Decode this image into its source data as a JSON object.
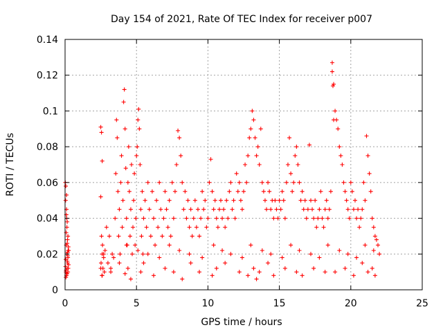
{
  "chart_data": {
    "type": "scatter",
    "title": "Day 154 of 2021, Rate Of TEC Index for receiver p007",
    "xlabel": "GPS time / hours",
    "ylabel": "ROTI / TECUs",
    "xlim": [
      0,
      25
    ],
    "ylim": [
      0,
      0.14
    ],
    "x_ticks": [
      "0",
      "5",
      "10",
      "15",
      "20",
      "25"
    ],
    "y_ticks": [
      "0",
      "0.02",
      "0.04",
      "0.06",
      "0.08",
      "0.1",
      "0.12",
      "0.14"
    ],
    "grid": true,
    "marker": "+",
    "series_color": "#ff0000",
    "series": [
      {
        "x": [
          0.05,
          0.1,
          0.15,
          0.2,
          0.08,
          0.12,
          0.18,
          0.22,
          0.06,
          0.1,
          0.14,
          0.2,
          0.25,
          0.02,
          0.04,
          0.09,
          0.13,
          0.17,
          0.21,
          0.24,
          0.07,
          0.11,
          0.16,
          0.19,
          0.23,
          0.03,
          0.05,
          0.08,
          0.12,
          0.15,
          0.18,
          0.2,
          0.1,
          0.06,
          0.14,
          2.5,
          2.55,
          2.6,
          2.5,
          2.55,
          2.6,
          2.65,
          2.58,
          2.52,
          2.62,
          2.7,
          2.75,
          2.8,
          2.9,
          3.0,
          3.1,
          3.2,
          3.3,
          3.5,
          3.55,
          3.6,
          3.65,
          3.7,
          3.75,
          3.8,
          3.85,
          3.9,
          3.95,
          4.0,
          4.05,
          4.1,
          4.15,
          4.2,
          4.25,
          4.3,
          4.35,
          4.4,
          4.45,
          4.5,
          4.55,
          4.6,
          4.65,
          4.7,
          4.75,
          4.8,
          4.85,
          4.9,
          4.95,
          5.0,
          5.05,
          5.1,
          5.15,
          5.2,
          5.25,
          5.3,
          5.35,
          5.4,
          5.45,
          5.5,
          5.6,
          5.7,
          5.8,
          5.9,
          6.0,
          6.1,
          6.2,
          6.3,
          6.4,
          6.5,
          6.6,
          6.7,
          6.8,
          6.9,
          7.0,
          7.1,
          7.2,
          7.3,
          7.4,
          7.5,
          7.6,
          7.7,
          7.8,
          7.9,
          8.0,
          8.1,
          8.2,
          8.3,
          8.4,
          8.5,
          8.6,
          8.7,
          8.8,
          8.9,
          9.0,
          9.1,
          9.2,
          9.3,
          9.4,
          9.5,
          9.6,
          9.7,
          9.8,
          9.9,
          10.0,
          10.1,
          10.2,
          10.3,
          10.4,
          10.5,
          10.6,
          10.7,
          10.8,
          10.9,
          11.0,
          11.1,
          11.2,
          11.3,
          11.4,
          11.5,
          11.6,
          11.7,
          11.8,
          11.9,
          12.0,
          12.1,
          12.2,
          12.3,
          12.4,
          12.5,
          12.6,
          12.7,
          12.8,
          12.9,
          13.0,
          13.1,
          13.2,
          13.3,
          13.4,
          13.5,
          13.6,
          13.7,
          13.8,
          13.9,
          14.0,
          14.1,
          14.2,
          14.3,
          14.4,
          14.5,
          14.6,
          14.7,
          14.8,
          14.9,
          15.0,
          15.1,
          15.2,
          15.3,
          15.4,
          15.5,
          15.6,
          15.7,
          15.8,
          15.9,
          16.0,
          16.1,
          16.2,
          16.3,
          16.4,
          16.5,
          16.6,
          16.7,
          16.8,
          16.9,
          17.0,
          17.1,
          17.2,
          17.3,
          17.4,
          17.5,
          17.6,
          17.7,
          17.8,
          17.9,
          18.0,
          18.1,
          18.2,
          18.3,
          18.4,
          18.5,
          18.6,
          18.7,
          18.8,
          18.9,
          19.0,
          19.1,
          19.2,
          19.3,
          19.4,
          19.5,
          19.6,
          19.7,
          19.8,
          19.9,
          20.0,
          20.1,
          20.2,
          20.3,
          20.4,
          20.5,
          20.6,
          20.7,
          20.8,
          20.9,
          21.0,
          21.1,
          21.2,
          21.3,
          21.4,
          21.5,
          21.6,
          21.7,
          21.8,
          21.9,
          22.0,
          2.5,
          2.6,
          3.2,
          3.8,
          4.2,
          4.4,
          4.6,
          5.3,
          5.5,
          6.2,
          7.0,
          7.6,
          8.2,
          8.8,
          9.4,
          10.3,
          10.6,
          11.2,
          12.2,
          12.8,
          13.2,
          13.4,
          13.6,
          14.2,
          14.6,
          15.4,
          16.2,
          16.6,
          17.4,
          18.2,
          18.7,
          18.75,
          18.8,
          18.9,
          19.6,
          20.2,
          20.8,
          21.2,
          21.5,
          21.7,
          2.7,
          3.4,
          4.3,
          5.1,
          5.8,
          6.6,
          7.3,
          8.0,
          8.7,
          9.6,
          10.4,
          11.0,
          11.6,
          12.4,
          13.0,
          13.8,
          14.4,
          15.2,
          15.8,
          16.4,
          17.2,
          17.8,
          18.4,
          19.2,
          19.8,
          20.4,
          21.0,
          21.6
        ],
        "y": [
          0.058,
          0.045,
          0.038,
          0.03,
          0.025,
          0.02,
          0.015,
          0.012,
          0.01,
          0.008,
          0.012,
          0.018,
          0.022,
          0.06,
          0.05,
          0.042,
          0.035,
          0.028,
          0.022,
          0.014,
          0.011,
          0.009,
          0.016,
          0.019,
          0.024,
          0.013,
          0.017,
          0.032,
          0.04,
          0.026,
          0.021,
          0.01,
          0.053,
          0.007,
          0.009,
          0.091,
          0.088,
          0.072,
          0.052,
          0.03,
          0.02,
          0.012,
          0.008,
          0.015,
          0.025,
          0.018,
          0.01,
          0.022,
          0.035,
          0.015,
          0.03,
          0.012,
          0.02,
          0.04,
          0.065,
          0.095,
          0.085,
          0.055,
          0.03,
          0.045,
          0.02,
          0.06,
          0.075,
          0.035,
          0.05,
          0.105,
          0.112,
          0.09,
          0.068,
          0.04,
          0.025,
          0.06,
          0.08,
          0.055,
          0.03,
          0.045,
          0.07,
          0.02,
          0.035,
          0.05,
          0.065,
          0.025,
          0.04,
          0.075,
          0.08,
          0.095,
          0.101,
          0.09,
          0.07,
          0.045,
          0.03,
          0.055,
          0.02,
          0.04,
          0.05,
          0.035,
          0.06,
          0.045,
          0.03,
          0.055,
          0.04,
          0.025,
          0.05,
          0.035,
          0.06,
          0.045,
          0.03,
          0.04,
          0.055,
          0.045,
          0.035,
          0.05,
          0.03,
          0.06,
          0.04,
          0.055,
          0.07,
          0.089,
          0.085,
          0.075,
          0.06,
          0.045,
          0.055,
          0.04,
          0.05,
          0.035,
          0.045,
          0.03,
          0.04,
          0.05,
          0.035,
          0.045,
          0.03,
          0.04,
          0.055,
          0.045,
          0.05,
          0.035,
          0.04,
          0.06,
          0.073,
          0.055,
          0.045,
          0.05,
          0.04,
          0.035,
          0.045,
          0.05,
          0.04,
          0.045,
          0.035,
          0.05,
          0.04,
          0.055,
          0.06,
          0.045,
          0.05,
          0.04,
          0.065,
          0.055,
          0.06,
          0.05,
          0.045,
          0.055,
          0.07,
          0.06,
          0.075,
          0.085,
          0.09,
          0.1,
          0.095,
          0.085,
          0.075,
          0.08,
          0.07,
          0.09,
          0.06,
          0.055,
          0.05,
          0.045,
          0.06,
          0.055,
          0.045,
          0.05,
          0.04,
          0.05,
          0.045,
          0.04,
          0.05,
          0.045,
          0.055,
          0.05,
          0.04,
          0.06,
          0.07,
          0.085,
          0.065,
          0.055,
          0.06,
          0.075,
          0.08,
          0.07,
          0.06,
          0.05,
          0.055,
          0.045,
          0.05,
          0.04,
          0.045,
          0.081,
          0.05,
          0.045,
          0.04,
          0.05,
          0.035,
          0.04,
          0.045,
          0.055,
          0.04,
          0.035,
          0.045,
          0.05,
          0.04,
          0.045,
          0.055,
          0.127,
          0.115,
          0.1,
          0.095,
          0.09,
          0.08,
          0.075,
          0.07,
          0.06,
          0.055,
          0.05,
          0.045,
          0.04,
          0.06,
          0.055,
          0.045,
          0.05,
          0.04,
          0.045,
          0.035,
          0.04,
          0.045,
          0.06,
          0.05,
          0.086,
          0.075,
          0.065,
          0.055,
          0.04,
          0.035,
          0.03,
          0.028,
          0.025,
          0.02,
          0.012,
          0.008,
          0.01,
          0.015,
          0.009,
          0.012,
          0.006,
          0.01,
          0.015,
          0.008,
          0.012,
          0.01,
          0.006,
          0.015,
          0.01,
          0.008,
          0.012,
          0.015,
          0.01,
          0.008,
          0.012,
          0.006,
          0.01,
          0.015,
          0.008,
          0.012,
          0.01,
          0.008,
          0.012,
          0.01,
          0.122,
          0.114,
          0.095,
          0.01,
          0.012,
          0.008,
          0.015,
          0.01,
          0.012,
          0.008,
          0.02,
          0.018,
          0.025,
          0.022,
          0.02,
          0.018,
          0.025,
          0.022,
          0.02,
          0.018,
          0.025,
          0.022,
          0.02,
          0.018,
          0.025,
          0.022,
          0.02,
          0.018,
          0.025,
          0.022,
          0.02,
          0.018,
          0.025,
          0.022,
          0.02,
          0.018,
          0.025,
          0.022
        ]
      }
    ]
  }
}
